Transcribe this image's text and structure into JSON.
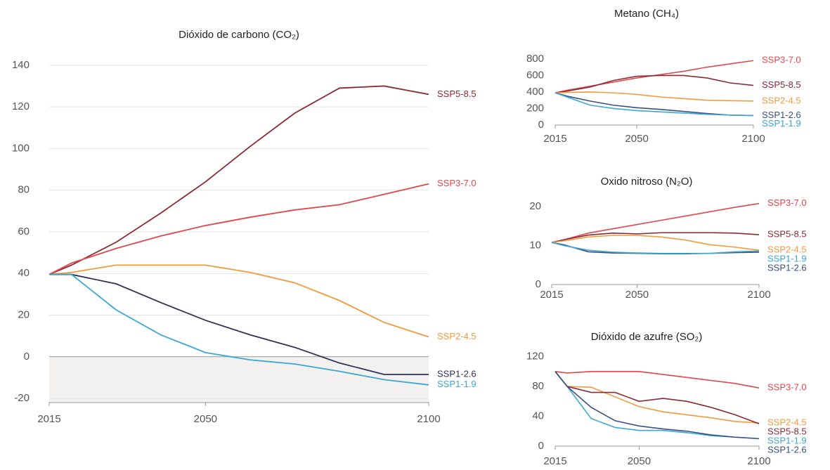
{
  "chart_data": [
    {
      "type": "line",
      "title": "Dióxido de carbono (CO₂)",
      "x": [
        2015,
        2020,
        2030,
        2040,
        2050,
        2060,
        2070,
        2080,
        2090,
        2100
      ],
      "xlim": [
        2015,
        2100
      ],
      "xticks": [
        2015,
        2050,
        2100
      ],
      "ylim": [
        -22,
        145
      ],
      "yticks": [
        -20,
        0,
        20,
        40,
        60,
        80,
        100,
        120,
        140
      ],
      "grid": true,
      "series": [
        {
          "name": "SSP5-8.5",
          "color": "#8b2a35",
          "values": [
            39.5,
            44,
            55,
            69,
            84,
            101,
            117,
            129,
            130,
            126
          ]
        },
        {
          "name": "SSP3-7.0",
          "color": "#e0474c",
          "values": [
            39.5,
            45,
            52,
            58,
            63,
            67,
            70.5,
            73,
            78,
            83
          ]
        },
        {
          "name": "SSP2-4.5",
          "color": "#f39a3a",
          "values": [
            39.5,
            40.5,
            44,
            44,
            44,
            40.5,
            35.5,
            27,
            16.5,
            9.5
          ]
        },
        {
          "name": "SSP1-2.6",
          "color": "#2d3258",
          "values": [
            39.5,
            39.5,
            35,
            26,
            17.5,
            10.5,
            4.5,
            -3,
            -8.5,
            -8.5
          ]
        },
        {
          "name": "SSP1-1.9",
          "color": "#3aa7d4",
          "values": [
            39.5,
            39.5,
            22.5,
            10.5,
            2,
            -1.5,
            -3.5,
            -7,
            -11,
            -13.5
          ]
        }
      ]
    },
    {
      "type": "line",
      "title": "Metano (CH₄)",
      "x": [
        2015,
        2020,
        2030,
        2040,
        2050,
        2060,
        2070,
        2080,
        2090,
        2100
      ],
      "xlim": [
        2015,
        2100
      ],
      "xticks": [
        2015,
        2050,
        2100
      ],
      "ylim": [
        0,
        850
      ],
      "yticks": [
        0,
        200,
        400,
        600,
        800
      ],
      "grid": false,
      "series": [
        {
          "name": "SSP3-7.0",
          "color": "#e0474c",
          "values": [
            390,
            420,
            470,
            520,
            570,
            610,
            650,
            700,
            740,
            780
          ]
        },
        {
          "name": "SSP5-8.5",
          "color": "#8b2a35",
          "values": [
            390,
            410,
            460,
            540,
            590,
            600,
            600,
            570,
            510,
            480
          ]
        },
        {
          "name": "SSP2-4.5",
          "color": "#f39a3a",
          "values": [
            390,
            395,
            400,
            390,
            370,
            340,
            320,
            300,
            295,
            290
          ]
        },
        {
          "name": "SSP1-2.6",
          "color": "#3b4f80",
          "values": [
            390,
            350,
            290,
            240,
            210,
            190,
            165,
            140,
            120,
            115
          ]
        },
        {
          "name": "SSP1-1.9",
          "color": "#3aa7d4",
          "values": [
            390,
            340,
            240,
            200,
            175,
            160,
            145,
            130,
            120,
            115
          ]
        }
      ]
    },
    {
      "type": "line",
      "title": "Oxido nitroso (N₂O)",
      "x": [
        2015,
        2020,
        2030,
        2040,
        2050,
        2060,
        2070,
        2080,
        2090,
        2100
      ],
      "xlim": [
        2015,
        2100
      ],
      "xticks": [
        2015,
        2050,
        2100
      ],
      "ylim": [
        0,
        22
      ],
      "yticks": [
        0,
        10,
        20
      ],
      "grid": false,
      "series": [
        {
          "name": "SSP3-7.0",
          "color": "#e0474c",
          "values": [
            10.8,
            11.5,
            13.2,
            14.3,
            15.4,
            16.5,
            17.6,
            18.7,
            19.8,
            20.8
          ]
        },
        {
          "name": "SSP5-8.5",
          "color": "#8b2a35",
          "values": [
            10.8,
            11.5,
            12.7,
            13.2,
            13.0,
            13.3,
            13.3,
            13.3,
            13.2,
            12.8
          ]
        },
        {
          "name": "SSP2-4.5",
          "color": "#f39a3a",
          "values": [
            10.8,
            11.2,
            12.2,
            12.6,
            12.6,
            12.2,
            11.4,
            10.2,
            9.6,
            8.8
          ]
        },
        {
          "name": "SSP1-2.6",
          "color": "#3b4f80",
          "values": [
            10.8,
            10.2,
            8.4,
            8.1,
            8.0,
            7.9,
            7.9,
            8.0,
            8.2,
            8.3
          ]
        },
        {
          "name": "SSP1-1.9",
          "color": "#3aa7d4",
          "values": [
            10.8,
            10.0,
            8.8,
            8.3,
            8.1,
            8.0,
            8.0,
            8.0,
            8.4,
            8.6
          ]
        }
      ]
    },
    {
      "type": "line",
      "title": "Dióxido de azufre (SO₂)",
      "x": [
        2015,
        2020,
        2030,
        2040,
        2050,
        2060,
        2070,
        2080,
        2090,
        2100
      ],
      "xlim": [
        2015,
        2100
      ],
      "xticks": [
        2015,
        2050,
        2100
      ],
      "ylim": [
        0,
        130
      ],
      "yticks": [
        0,
        40,
        80,
        120
      ],
      "grid": false,
      "series": [
        {
          "name": "SSP3-7.0",
          "color": "#e0474c",
          "values": [
            100,
            98,
            100,
            100,
            100,
            96,
            92,
            88,
            84,
            78
          ]
        },
        {
          "name": "SSP2-4.5",
          "color": "#f39a3a",
          "values": [
            100,
            80,
            79,
            66,
            53,
            46,
            42,
            38,
            33,
            31
          ]
        },
        {
          "name": "SSP5-8.5",
          "color": "#8b2a35",
          "values": [
            100,
            80,
            72,
            72,
            60,
            64,
            60,
            52,
            42,
            30
          ]
        },
        {
          "name": "SSP1-1.9",
          "color": "#3aa7d4",
          "values": [
            100,
            80,
            37,
            25,
            21,
            21,
            18,
            14,
            12,
            10
          ]
        },
        {
          "name": "SSP1-2.6",
          "color": "#3b4f80",
          "values": [
            100,
            80,
            52,
            34,
            27,
            23,
            20,
            15,
            12,
            10
          ]
        }
      ]
    }
  ]
}
